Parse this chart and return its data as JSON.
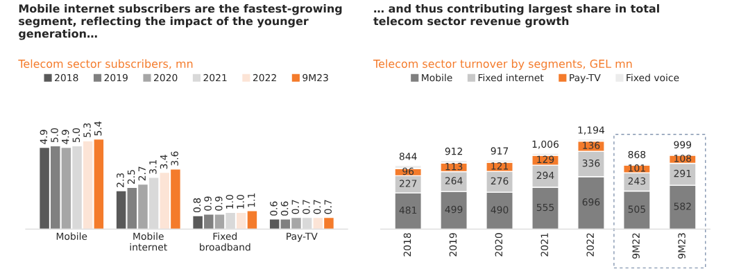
{
  "chart_data": [
    {
      "type": "bar",
      "title": "Mobile internet subscribers are the fastest-growing\nsegment, reflecting the impact of the younger\ngeneration…",
      "subtitle": "Telecom sector subscribers, mn",
      "categories": [
        "Mobile",
        "Mobile\ninternet",
        "Fixed\nbroadband",
        "Pay-TV"
      ],
      "legend": "top",
      "grid": false,
      "series": [
        {
          "name": "2018",
          "color": "#595959",
          "values": [
            4.9,
            2.3,
            0.8,
            0.6
          ],
          "value_labels": [
            "4.9",
            "2.3",
            "0.8",
            "0.6"
          ]
        },
        {
          "name": "2019",
          "color": "#808080",
          "values": [
            5.0,
            2.5,
            0.9,
            0.6
          ],
          "value_labels": [
            "5.0",
            "2.5",
            "0.9",
            "0.6"
          ]
        },
        {
          "name": "2020",
          "color": "#a6a6a6",
          "values": [
            4.9,
            2.7,
            0.9,
            0.7
          ],
          "value_labels": [
            "4.9",
            "2.7",
            "0.9",
            "0.7"
          ]
        },
        {
          "name": "2021",
          "color": "#d9d9d9",
          "values": [
            5.0,
            3.1,
            1.0,
            0.7
          ],
          "value_labels": [
            "5.0",
            "3.1",
            "1.0",
            "0.7"
          ]
        },
        {
          "name": "2022",
          "color": "#fce4d6",
          "values": [
            5.3,
            3.4,
            1.0,
            0.7
          ],
          "value_labels": [
            "5.3",
            "3.4",
            "1.0",
            "0.7"
          ]
        },
        {
          "name": "9M23",
          "color": "#f47b2b",
          "values": [
            5.4,
            3.6,
            1.1,
            0.7
          ],
          "value_labels": [
            "5.4",
            "3.6",
            "1.1",
            "0.7"
          ]
        }
      ]
    },
    {
      "type": "bar",
      "stacked": true,
      "title": "… and thus contributing largest share in total\ntelecom sector revenue growth",
      "subtitle": "Telecom sector turnover by segments, GEL mn",
      "categories": [
        "2018",
        "2019",
        "2020",
        "2021",
        "2022",
        "9M22",
        "9M23"
      ],
      "legend": "top",
      "grid": false,
      "series": [
        {
          "name": "Mobile",
          "color": "#808080",
          "values": [
            481,
            499,
            490,
            555,
            696,
            505,
            582
          ],
          "value_labels": [
            "481",
            "499",
            "490",
            "555",
            "696",
            "505",
            "582"
          ]
        },
        {
          "name": "Fixed internet",
          "color": "#c8c8c8",
          "values": [
            227,
            264,
            276,
            294,
            336,
            243,
            291
          ],
          "value_labels": [
            "227",
            "264",
            "276",
            "294",
            "336",
            "243",
            "291"
          ]
        },
        {
          "name": "Pay-TV",
          "color": "#f47b2b",
          "values": [
            96,
            113,
            121,
            129,
            136,
            101,
            108
          ],
          "value_labels": [
            "96",
            "113",
            "121",
            "129",
            "136",
            "101",
            "108"
          ]
        },
        {
          "name": "Fixed voice",
          "color": "#ececec",
          "values": [
            40,
            36,
            30,
            28,
            26,
            19,
            18
          ],
          "value_labels": [
            null,
            null,
            null,
            null,
            null,
            null,
            null
          ]
        }
      ],
      "totals": [
        "844",
        "912",
        "917",
        "1,006",
        "1,194",
        "868",
        "999"
      ]
    }
  ]
}
